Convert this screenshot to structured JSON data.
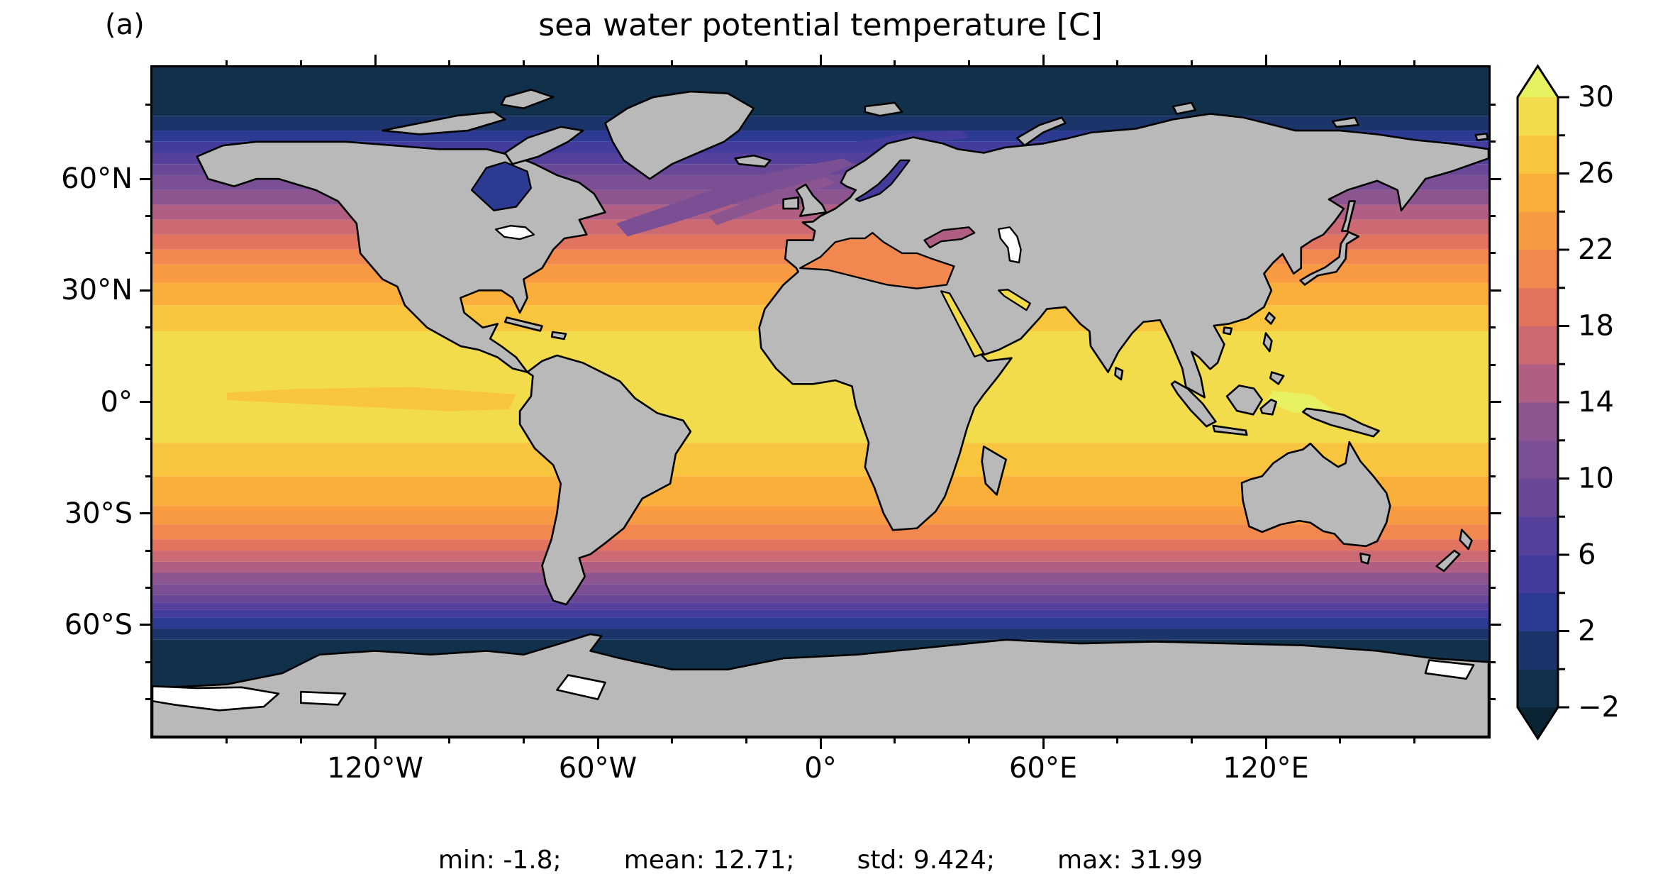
{
  "figure": {
    "panel_label": "(a)",
    "title": "sea water potential temperature [C]",
    "stats_items": [
      "min: -1.8;",
      "mean: 12.71;",
      "std: 9.424;",
      "max: 31.99"
    ]
  },
  "chart_data": {
    "type": "heatmap",
    "title": "sea water potential temperature [C]",
    "variable": "sea water potential temperature",
    "units": "C",
    "projection": "equirectangular world map, lon -180..180, lat -90..90",
    "stats": {
      "min": -1.8,
      "mean": 12.71,
      "std": 9.424,
      "max": 31.99
    },
    "land_color": "#b9b9b9",
    "coastline_color": "#000000",
    "no_data_color": "#ffffff",
    "background_color": "#ffffff",
    "colormap": {
      "name": "thermal-like filled contours, 2 degC steps",
      "levels": [
        -2,
        0,
        2,
        4,
        6,
        8,
        10,
        12,
        14,
        16,
        18,
        20,
        22,
        24,
        26,
        28,
        30
      ],
      "band_colors": [
        "#11304b",
        "#1b356b",
        "#2c3a92",
        "#433c9c",
        "#55419b",
        "#684897",
        "#7a4f93",
        "#8d5590",
        "#b05e83",
        "#cb6a73",
        "#e2745f",
        "#f0884f",
        "#f89a41",
        "#fbaf3b",
        "#f9c53e",
        "#f3dc4b"
      ],
      "under_color": "#0a2433",
      "over_color": "#e7f161",
      "extend": "both",
      "major_ticks": [
        {
          "value": 30,
          "label": "30"
        },
        {
          "value": 26,
          "label": "26"
        },
        {
          "value": 22,
          "label": "22"
        },
        {
          "value": 18,
          "label": "18"
        },
        {
          "value": 14,
          "label": "14"
        },
        {
          "value": 10,
          "label": "10"
        },
        {
          "value": 6,
          "label": "6"
        },
        {
          "value": 2,
          "label": "2"
        },
        {
          "value": -2,
          "label": "−2"
        }
      ],
      "minor_ticks": [
        28,
        24,
        20,
        16,
        12,
        8,
        4,
        0
      ]
    },
    "x_axis": {
      "major": [
        {
          "label": "120°W",
          "lon": -120
        },
        {
          "label": "60°W",
          "lon": -60
        },
        {
          "label": "0°",
          "lon": 0
        },
        {
          "label": "60°E",
          "lon": 60
        },
        {
          "label": "120°E",
          "lon": 120
        }
      ],
      "minor_lons": [
        -160,
        -140,
        -100,
        -80,
        -40,
        -20,
        20,
        40,
        80,
        100,
        140,
        160
      ]
    },
    "y_axis": {
      "major": [
        {
          "label": "60°N",
          "lat": 60
        },
        {
          "label": "30°N",
          "lat": 30
        },
        {
          "label": "0°",
          "lat": 0
        },
        {
          "label": "30°S",
          "lat": -30
        },
        {
          "label": "60°S",
          "lat": -60
        }
      ],
      "minor_lats": [
        80,
        70,
        50,
        40,
        20,
        10,
        -10,
        -20,
        -40,
        -50,
        -70,
        -80
      ]
    },
    "zonal_bands": [
      {
        "lat_from": 90,
        "lat_to": 77,
        "temp": -1
      },
      {
        "lat_from": 77,
        "lat_to": 73,
        "temp": 1
      },
      {
        "lat_from": 73,
        "lat_to": 70,
        "temp": 3
      },
      {
        "lat_from": 70,
        "lat_to": 67,
        "temp": 5
      },
      {
        "lat_from": 67,
        "lat_to": 64,
        "temp": 7
      },
      {
        "lat_from": 64,
        "lat_to": 61,
        "temp": 9
      },
      {
        "lat_from": 61,
        "lat_to": 57,
        "temp": 11
      },
      {
        "lat_from": 57,
        "lat_to": 53,
        "temp": 13
      },
      {
        "lat_from": 53,
        "lat_to": 49,
        "temp": 15
      },
      {
        "lat_from": 49,
        "lat_to": 45,
        "temp": 17
      },
      {
        "lat_from": 45,
        "lat_to": 41,
        "temp": 19
      },
      {
        "lat_from": 41,
        "lat_to": 37,
        "temp": 21
      },
      {
        "lat_from": 37,
        "lat_to": 32,
        "temp": 23
      },
      {
        "lat_from": 32,
        "lat_to": 26,
        "temp": 25
      },
      {
        "lat_from": 26,
        "lat_to": 19,
        "temp": 27
      },
      {
        "lat_from": 19,
        "lat_to": -11,
        "temp": 29
      },
      {
        "lat_from": -11,
        "lat_to": -20,
        "temp": 27
      },
      {
        "lat_from": -20,
        "lat_to": -28,
        "temp": 25
      },
      {
        "lat_from": -28,
        "lat_to": -33,
        "temp": 23
      },
      {
        "lat_from": -33,
        "lat_to": -37,
        "temp": 21
      },
      {
        "lat_from": -37,
        "lat_to": -40,
        "temp": 19
      },
      {
        "lat_from": -40,
        "lat_to": -43,
        "temp": 17
      },
      {
        "lat_from": -43,
        "lat_to": -46,
        "temp": 15
      },
      {
        "lat_from": -46,
        "lat_to": -49,
        "temp": 13
      },
      {
        "lat_from": -49,
        "lat_to": -52,
        "temp": 11
      },
      {
        "lat_from": -52,
        "lat_to": -54,
        "temp": 9
      },
      {
        "lat_from": -54,
        "lat_to": -56,
        "temp": 7
      },
      {
        "lat_from": -56,
        "lat_to": -58,
        "temp": 5
      },
      {
        "lat_from": -58,
        "lat_to": -61,
        "temp": 3
      },
      {
        "lat_from": -61,
        "lat_to": -64,
        "temp": 1
      },
      {
        "lat_from": -64,
        "lat_to": -90,
        "temp": -1
      }
    ],
    "regions": [
      {
        "name": "north-atlantic-warm-tongue-outer",
        "selector": "#anom-natl-a",
        "temp": 11
      },
      {
        "name": "north-atlantic-warm-tongue-inner",
        "selector": "#anom-natl-b",
        "temp": 13
      },
      {
        "name": "barents-warm-intrusion",
        "selector": "#anom-barents",
        "temp": 5
      },
      {
        "name": "east-pacific-cold-tongue",
        "selector": "#anom-pac-cold",
        "temp": 27
      },
      {
        "name": "west-pacific-warm-pool",
        "selector": "#anom-warmpool",
        "temp": 31
      },
      {
        "name": "mediterranean-sea",
        "selector": "#sea-med",
        "temp": 21
      },
      {
        "name": "black-sea",
        "selector": "#sea-black",
        "temp": 15
      },
      {
        "name": "caspian-sea",
        "selector": "#sea-caspian",
        "no_data": true
      },
      {
        "name": "baltic-sea",
        "selector": "#sea-baltic",
        "temp": 5
      },
      {
        "name": "red-sea",
        "selector": "#sea-red",
        "temp": 29
      },
      {
        "name": "persian-gulf",
        "selector": "#sea-persian",
        "temp": 29
      },
      {
        "name": "hudson-bay",
        "selector": "#sea-hudson",
        "temp": 3
      },
      {
        "name": "great-lakes",
        "selector": "#lakes-great",
        "no_data": true
      }
    ]
  }
}
